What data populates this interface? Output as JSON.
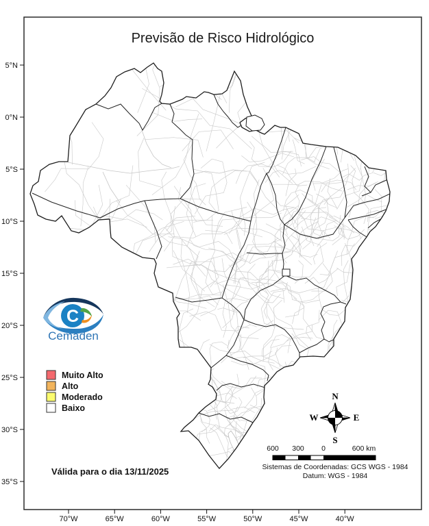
{
  "title": "Previsão de Risco Hidrológico",
  "logo": {
    "c": "C",
    "name": "Cemaden"
  },
  "legend": {
    "items": [
      {
        "label": "Muito Alto",
        "color": "#F4696E"
      },
      {
        "label": "Alto",
        "color": "#F2B45C"
      },
      {
        "label": "Moderado",
        "color": "#FBFB6E"
      },
      {
        "label": "Baixo",
        "color": "#FFFFFF"
      }
    ]
  },
  "map": {
    "moderate_region_fill": "#F8F96B"
  },
  "validity": "Válida para o dia 13/11/2025",
  "compass": {
    "north": "N",
    "east": "E",
    "south": "S",
    "west": "W"
  },
  "scalebar": {
    "label_600_left": "600",
    "label_300": "300",
    "label_0": "0",
    "label_600_right": "600 km"
  },
  "footer": {
    "coordinate_system": "Sistemas de Coordenadas: GCS WGS - 1984",
    "datum": "Datum: WGS - 1984"
  },
  "axes": {
    "lat": [
      "5°N",
      "0°N",
      "5°S",
      "10°S",
      "15°S",
      "20°S",
      "25°S",
      "30°S",
      "35°S"
    ],
    "lon": [
      "70°W",
      "65°W",
      "60°W",
      "55°W",
      "50°W",
      "45°W",
      "40°W"
    ]
  }
}
